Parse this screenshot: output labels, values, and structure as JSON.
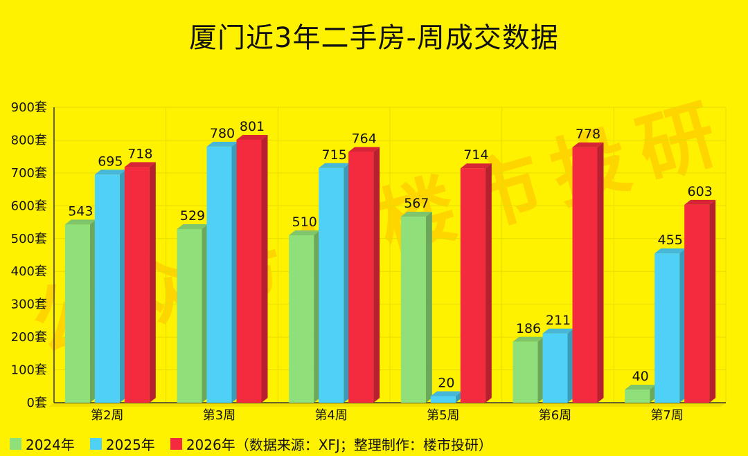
{
  "title": "厦门近3年二手房-周成交数据",
  "watermark": "公众号：楼市投研",
  "legend_note": "（数据来源：XFJ；整理制作：楼市投研）",
  "colors": {
    "s2024": "#8FE07A",
    "s2025": "#4FD0F7",
    "s2026": "#F42A3E"
  },
  "chart_data": {
    "type": "bar",
    "categories": [
      "第2周",
      "第3周",
      "第4周",
      "第5周",
      "第6周",
      "第7周"
    ],
    "series": [
      {
        "name": "2024年",
        "values": [
          543,
          529,
          510,
          567,
          186,
          40
        ]
      },
      {
        "name": "2025年",
        "values": [
          695,
          780,
          715,
          20,
          211,
          455
        ]
      },
      {
        "name": "2026年",
        "values": [
          718,
          801,
          764,
          714,
          778,
          603
        ]
      }
    ],
    "ylim": [
      0,
      900
    ],
    "yticks": [
      "0套",
      "100套",
      "200套",
      "300套",
      "400套",
      "500套",
      "600套",
      "700套",
      "800套",
      "900套"
    ],
    "grid": true,
    "legend_position": "bottom-left"
  }
}
